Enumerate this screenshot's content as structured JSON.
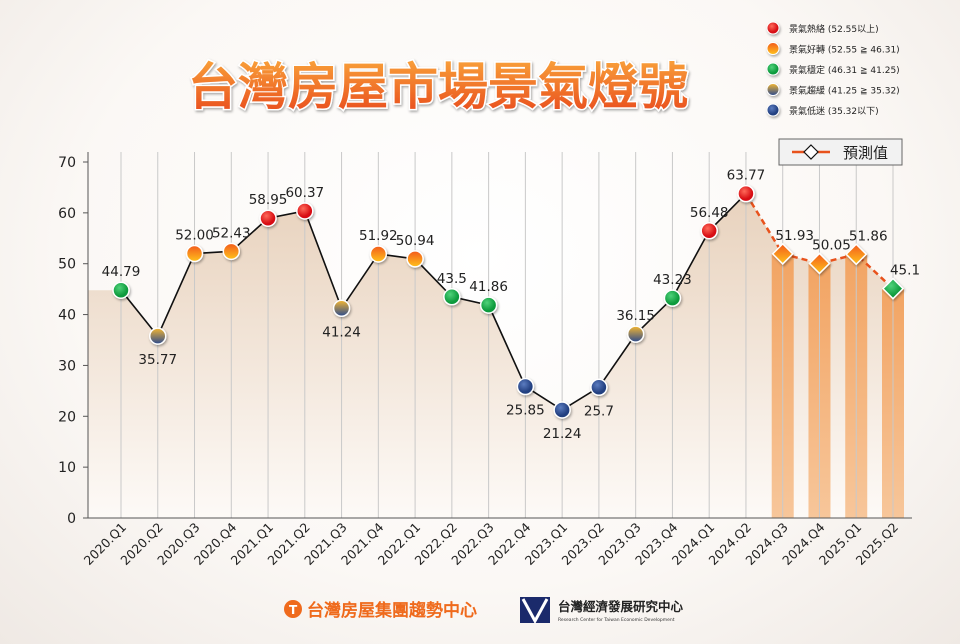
{
  "chart_data": {
    "type": "line",
    "title": "台灣房屋市場景氣燈號",
    "categories": [
      "2020.Q1",
      "2020.Q2",
      "2020.Q3",
      "2020.Q4",
      "2021.Q1",
      "2021.Q2",
      "2021.Q3",
      "2021.Q4",
      "2022.Q1",
      "2022.Q2",
      "2022.Q3",
      "2022.Q4",
      "2023.Q1",
      "2023.Q2",
      "2023.Q3",
      "2023.Q4",
      "2024.Q1",
      "2024.Q2",
      "2024.Q3",
      "2024.Q4",
      "2025.Q1",
      "2025.Q2"
    ],
    "values": [
      44.79,
      35.77,
      52.0,
      52.43,
      58.95,
      60.37,
      41.24,
      51.92,
      50.94,
      43.5,
      41.86,
      25.85,
      21.24,
      25.7,
      36.15,
      43.23,
      56.48,
      63.77,
      51.93,
      50.05,
      51.86,
      45.1
    ],
    "value_labels": [
      "44.79",
      "35.77",
      "52.00",
      "52.43",
      "58.95",
      "60.37",
      "41.24",
      "51.92",
      "50.94",
      "43.5",
      "41.86",
      "25.85",
      "21.24",
      "25.7",
      "36.15",
      "43.23",
      "56.48",
      "63.77",
      "51.93",
      "50.05",
      "51.86",
      "45.1"
    ],
    "forecast_start_index": 18,
    "forecast_label": "預測值",
    "ylim": [
      0,
      70
    ],
    "yticks": [
      0,
      10,
      20,
      30,
      40,
      50,
      60,
      70
    ],
    "grid": "vertical",
    "legend_position": "top-right",
    "signal_legend": [
      {
        "label": "景氣熱絡 (52.55以上)",
        "color": "#e8141c"
      },
      {
        "label": "景氣好轉 (52.55 ≧ 46.31)",
        "color": "#f7931e"
      },
      {
        "label": "景氣穩定 (46.31 ≧ 41.25)",
        "color": "#1fae4b"
      },
      {
        "label": "景氣趨緩 (41.25 ≧ 35.32)",
        "color": "#e6b23a"
      },
      {
        "label": "景氣低迷 (35.32以下)",
        "color": "#2f4f91"
      }
    ],
    "thresholds": [
      52.55,
      46.31,
      41.25,
      35.32
    ]
  },
  "footer": {
    "logo_left": "台灣房屋集團趨勢中心",
    "logo_right": "台灣經濟發展研究中心",
    "logo_right_en": "Research Center for Taiwan Economic Development"
  }
}
